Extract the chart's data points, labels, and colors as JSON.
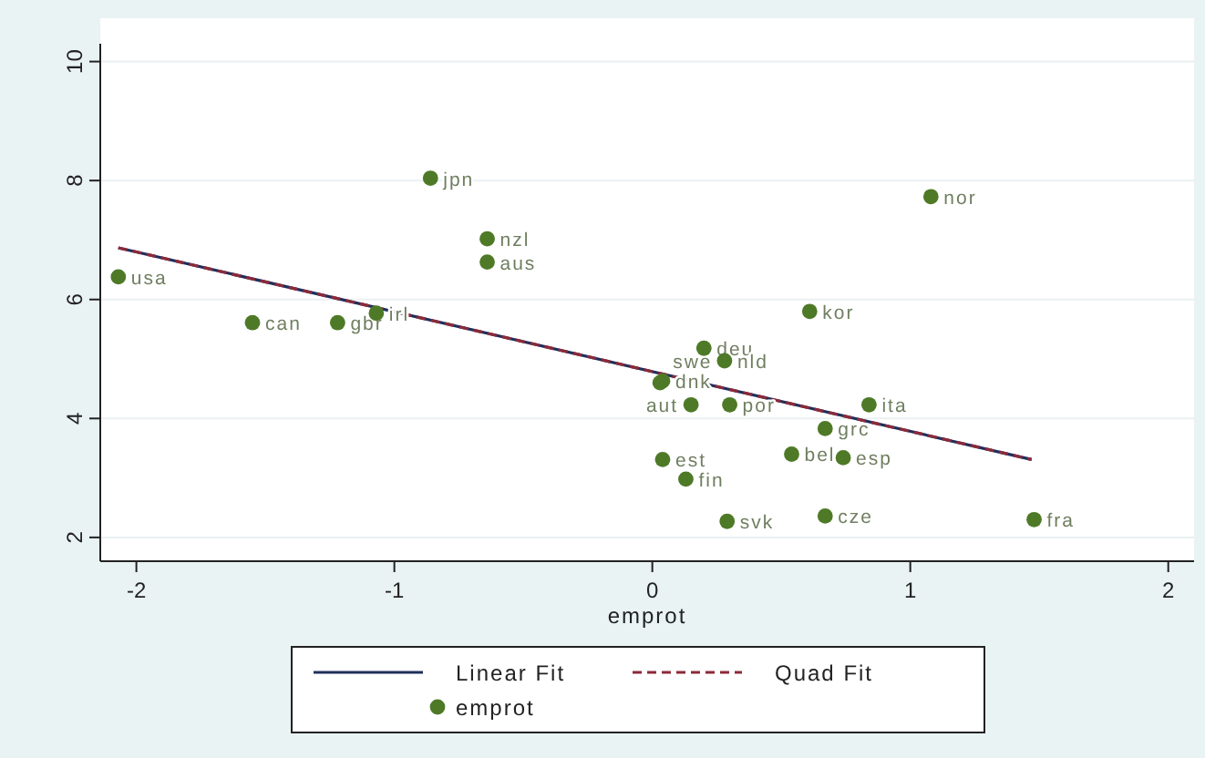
{
  "chart_data": {
    "type": "scatter",
    "xlabel": "emprot",
    "xlim": [
      -2.14,
      2.1
    ],
    "ylim": [
      1.6,
      10.3
    ],
    "xticks": [
      -2,
      -1,
      0,
      1,
      2
    ],
    "yticks": [
      2,
      4,
      6,
      8,
      10
    ],
    "grid": "y",
    "legend": "bottom",
    "marker": "circle",
    "series": [
      {
        "name": "Linear Fit",
        "type": "line",
        "color": "#1f2f5c",
        "line_style": "solid",
        "marker": "none",
        "x": [
          -2.07,
          1.47
        ],
        "values": [
          6.87,
          3.31
        ]
      },
      {
        "name": "Quad Fit",
        "type": "line",
        "color": "#8c2a3a",
        "line_style": "dashed",
        "marker": "none",
        "x": [
          -2.07,
          -0.3,
          1.47
        ],
        "values": [
          6.87,
          5.09,
          3.31
        ]
      },
      {
        "name": "emprot",
        "type": "scatter",
        "color": "#4e7a27",
        "x": [
          -2.07,
          -1.55,
          -1.22,
          -1.07,
          -0.86,
          -0.64,
          -0.64,
          1.08,
          0.61,
          0.2,
          0.28,
          0.04,
          0.03,
          0.15,
          0.3,
          0.84,
          0.67,
          0.54,
          0.74,
          0.04,
          0.13,
          0.29,
          0.67,
          1.48
        ],
        "values": [
          6.38,
          5.61,
          5.61,
          5.77,
          8.04,
          7.02,
          6.63,
          7.73,
          5.8,
          5.18,
          4.97,
          4.63,
          4.6,
          4.23,
          4.23,
          4.23,
          3.83,
          3.4,
          3.34,
          3.31,
          2.98,
          2.27,
          2.36,
          2.3
        ]
      }
    ],
    "annotations": [
      {
        "text": "usa",
        "x": -2.07,
        "y": 6.38
      },
      {
        "text": "can",
        "x": -1.55,
        "y": 5.61
      },
      {
        "text": "gbr",
        "x": -1.22,
        "y": 5.61
      },
      {
        "text": "irl",
        "x": -1.07,
        "y": 5.77
      },
      {
        "text": "jpn",
        "x": -0.86,
        "y": 8.04
      },
      {
        "text": "nzl",
        "x": -0.64,
        "y": 7.02
      },
      {
        "text": "aus",
        "x": -0.64,
        "y": 6.63
      },
      {
        "text": "nor",
        "x": 1.08,
        "y": 7.73
      },
      {
        "text": "kor",
        "x": 0.61,
        "y": 5.8
      },
      {
        "text": "deu",
        "x": 0.2,
        "y": 5.18
      },
      {
        "text": "nld",
        "x": 0.28,
        "y": 4.97
      },
      {
        "text": "dnk",
        "x": 0.04,
        "y": 4.63
      },
      {
        "text": "swe",
        "x": 0.03,
        "y": 4.6
      },
      {
        "text": "aut",
        "x": 0.15,
        "y": 4.23
      },
      {
        "text": "por",
        "x": 0.3,
        "y": 4.23
      },
      {
        "text": "ita",
        "x": 0.84,
        "y": 4.23
      },
      {
        "text": "grc",
        "x": 0.67,
        "y": 3.83
      },
      {
        "text": "bel",
        "x": 0.54,
        "y": 3.4
      },
      {
        "text": "esp",
        "x": 0.74,
        "y": 3.34
      },
      {
        "text": "est",
        "x": 0.04,
        "y": 3.31
      },
      {
        "text": "fin",
        "x": 0.13,
        "y": 2.98
      },
      {
        "text": "svk",
        "x": 0.29,
        "y": 2.27
      },
      {
        "text": "cze",
        "x": 0.67,
        "y": 2.36
      },
      {
        "text": "fra",
        "x": 1.48,
        "y": 2.3
      }
    ]
  }
}
